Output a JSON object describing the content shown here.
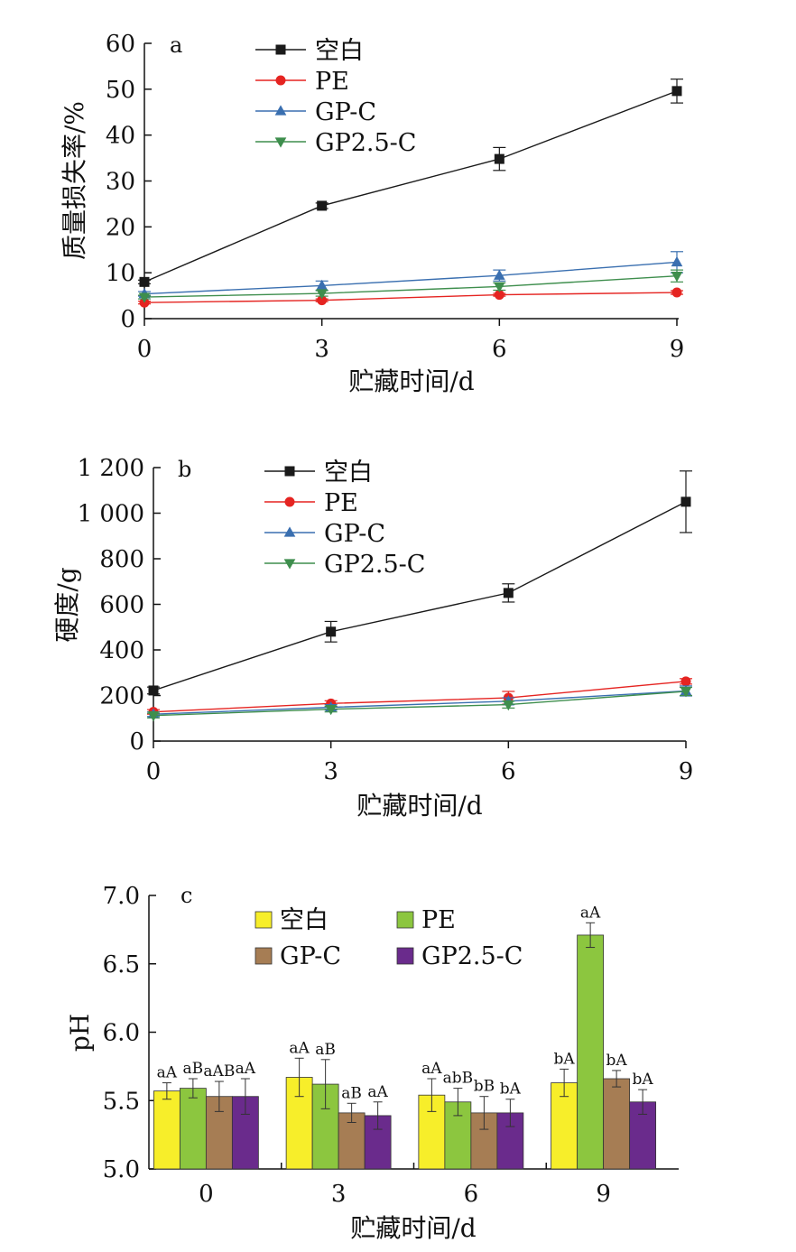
{
  "chart_data": [
    {
      "type": "line",
      "panel_label": "a",
      "xlabel": "贮藏时间/d",
      "ylabel": "质量损失率/%",
      "x": [
        0,
        3,
        6,
        9
      ],
      "xticks": [
        "0",
        "3",
        "6",
        "9"
      ],
      "ylim": [
        0,
        60
      ],
      "yticks": [
        0,
        10,
        20,
        30,
        40,
        50,
        60
      ],
      "ytick_labels": [
        "0",
        "10",
        "20",
        "30",
        "40",
        "50",
        "60"
      ],
      "legend_position": "top",
      "series": [
        {
          "name": "空白",
          "color": "#1a1a1a",
          "marker": "square",
          "values": [
            8.0,
            24.6,
            34.8,
            49.6
          ],
          "errors": [
            0.4,
            0.6,
            2.5,
            2.6
          ]
        },
        {
          "name": "PE",
          "color": "#e52421",
          "marker": "circle",
          "values": [
            3.5,
            4.0,
            5.2,
            5.7
          ],
          "errors": [
            0.3,
            0.3,
            0.3,
            0.4
          ]
        },
        {
          "name": "GP-C",
          "color": "#3a6fb0",
          "marker": "triangle-up",
          "values": [
            5.4,
            7.2,
            9.4,
            12.3
          ],
          "errors": [
            0.5,
            1.0,
            1.2,
            2.3
          ]
        },
        {
          "name": "GP2.5-C",
          "color": "#3e8e4d",
          "marker": "triangle-down",
          "values": [
            4.7,
            5.5,
            7.0,
            9.3
          ],
          "errors": [
            0.4,
            0.6,
            0.8,
            1.3
          ]
        }
      ]
    },
    {
      "type": "line",
      "panel_label": "b",
      "xlabel": "贮藏时间/d",
      "ylabel": "硬度/g",
      "x": [
        0,
        3,
        6,
        9
      ],
      "xticks": [
        "0",
        "3",
        "6",
        "9"
      ],
      "ylim": [
        0,
        1200
      ],
      "yticks": [
        0,
        200,
        400,
        600,
        800,
        1000,
        1200
      ],
      "ytick_labels": [
        "0",
        "200",
        "400",
        "600",
        "800",
        "1 000",
        "1 200"
      ],
      "legend_position": "top",
      "series": [
        {
          "name": "空白",
          "color": "#1a1a1a",
          "marker": "square",
          "values": [
            222,
            480,
            650,
            1050
          ],
          "errors": [
            15,
            45,
            40,
            135
          ]
        },
        {
          "name": "PE",
          "color": "#e52421",
          "marker": "circle",
          "values": [
            128,
            165,
            190,
            262
          ],
          "errors": [
            10,
            12,
            28,
            12
          ]
        },
        {
          "name": "GP-C",
          "color": "#3a6fb0",
          "marker": "triangle-up",
          "values": [
            118,
            148,
            175,
            220
          ],
          "errors": [
            10,
            12,
            15,
            22
          ]
        },
        {
          "name": "GP2.5-C",
          "color": "#3e8e4d",
          "marker": "triangle-down",
          "values": [
            112,
            140,
            160,
            218
          ],
          "errors": [
            10,
            12,
            15,
            18
          ]
        }
      ]
    },
    {
      "type": "bar",
      "panel_label": "c",
      "xlabel": "贮藏时间/d",
      "ylabel": "pH",
      "categories": [
        "0",
        "3",
        "6",
        "9"
      ],
      "ylim": [
        5.0,
        7.0
      ],
      "yticks": [
        5.0,
        5.5,
        6.0,
        6.5,
        7.0
      ],
      "ytick_labels": [
        "5.0",
        "5.5",
        "6.0",
        "6.5",
        "7.0"
      ],
      "legend_position": "top",
      "series": [
        {
          "name": "空白",
          "color": "#f7ee2a",
          "values": [
            5.57,
            5.67,
            5.54,
            5.63
          ],
          "errors": [
            0.06,
            0.14,
            0.12,
            0.1
          ],
          "labels": [
            "aA",
            "aA",
            "aA",
            "bA"
          ]
        },
        {
          "name": "PE",
          "color": "#8cc63f",
          "values": [
            5.59,
            5.62,
            5.49,
            6.71
          ],
          "errors": [
            0.07,
            0.18,
            0.1,
            0.09
          ],
          "labels": [
            "aB",
            "aB",
            "abB",
            "aA"
          ]
        },
        {
          "name": "GP-C",
          "color": "#a67d54",
          "values": [
            5.53,
            5.41,
            5.41,
            5.66
          ],
          "errors": [
            0.11,
            0.07,
            0.12,
            0.06
          ],
          "labels": [
            "aAB",
            "aB",
            "bB",
            "bA"
          ]
        },
        {
          "name": "GP2.5-C",
          "color": "#6a2b8c",
          "values": [
            5.53,
            5.39,
            5.41,
            5.49
          ],
          "errors": [
            0.13,
            0.1,
            0.1,
            0.09
          ],
          "labels": [
            "aA",
            "aA",
            "bA",
            "bA"
          ]
        }
      ]
    }
  ]
}
